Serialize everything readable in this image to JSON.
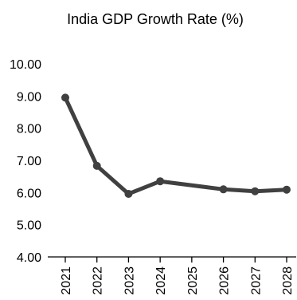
{
  "chart_data": {
    "type": "line",
    "title": "India GDP Growth Rate (%)",
    "xlabel": "",
    "ylabel": "",
    "categories": [
      "2021",
      "2022",
      "2023",
      "2024",
      "2025",
      "2026",
      "2027",
      "2028"
    ],
    "series": [
      {
        "name": "",
        "x": [
          "2021",
          "2022",
          "2023",
          "2024",
          "2026",
          "2027",
          "2028"
        ],
        "values": [
          8.95,
          6.83,
          5.96,
          6.35,
          6.1,
          6.04,
          6.09
        ]
      }
    ],
    "ylim": [
      4.0,
      10.0
    ],
    "yticks": [
      "4.00",
      "5.00",
      "6.00",
      "7.00",
      "8.00",
      "9.00",
      "10.00"
    ],
    "grid": false,
    "legend": "none",
    "colors": {
      "line": "#404040",
      "axis": "#000000",
      "text": "#000000",
      "background": "#ffffff"
    }
  }
}
